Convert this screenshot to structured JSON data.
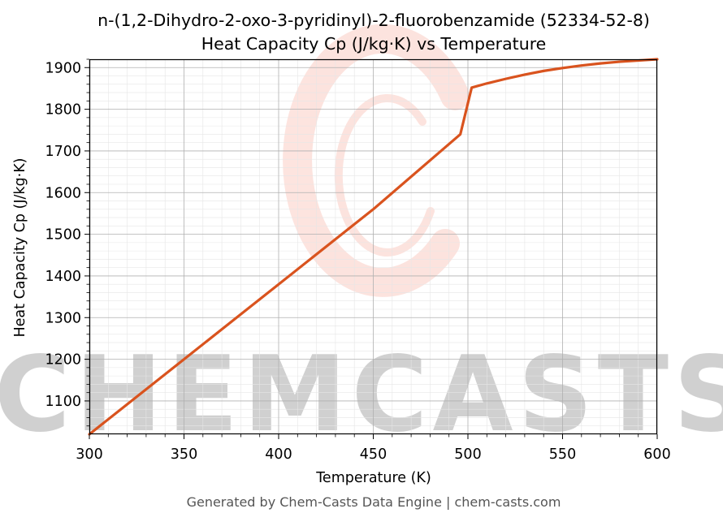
{
  "chart_data": {
    "type": "line",
    "title_line1": "n-(1,2-Dihydro-2-oxo-3-pyridinyl)-2-fluorobenzamide (52334-52-8)",
    "title_line2": "Heat Capacity Cp (J/kg·K) vs Temperature",
    "xlabel": "Temperature (K)",
    "ylabel": "Heat Capacity Cp (J/kg·K)",
    "xlim": [
      300,
      600
    ],
    "ylim": [
      1020,
      1920
    ],
    "x_ticks": [
      300,
      350,
      400,
      450,
      500,
      550,
      600
    ],
    "y_ticks": [
      1100,
      1200,
      1300,
      1400,
      1500,
      1600,
      1700,
      1800,
      1900
    ],
    "grid": true,
    "watermark": "CHEMCASTS",
    "series": [
      {
        "color": "#d9531e",
        "x": [
          300,
          350,
          400,
          450,
          496,
          502,
          510,
          520,
          530,
          540,
          550,
          560,
          570,
          580,
          590,
          600
        ],
        "y": [
          1020,
          1200,
          1380,
          1560,
          1740,
          1852,
          1862,
          1873,
          1883,
          1892,
          1899,
          1905,
          1910,
          1914,
          1917,
          1920
        ]
      }
    ]
  },
  "footer": "Generated by Chem-Casts Data Engine | chem-casts.com"
}
